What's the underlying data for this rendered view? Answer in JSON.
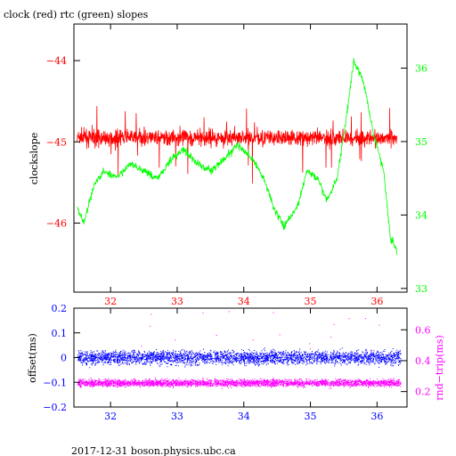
{
  "title": "clock (red) rtc (green) slopes",
  "footer": "2017-12-31  boson.physics.ubc.ca",
  "chart_data": [
    {
      "type": "line",
      "xlim": [
        31.45,
        36.45
      ],
      "x_ticks": [
        32,
        33,
        34,
        35,
        36
      ],
      "x_tick_color": "#ff0000",
      "y_left": {
        "label": "clockslope",
        "lim": [
          -46.85,
          -43.55
        ],
        "ticks": [
          -44,
          -45,
          -46
        ],
        "color": "#ff0000"
      },
      "y_right": {
        "label": "",
        "lim": [
          32.95,
          36.6
        ],
        "ticks": [
          33,
          34,
          35,
          36
        ],
        "color": "#00ff00"
      },
      "series": [
        {
          "color": "#ff0000",
          "axis": "left",
          "band_center": -44.95,
          "band_halfwidth": 0.12,
          "points": [
            [
              31.5,
              -44.9
            ],
            [
              32.5,
              -44.95
            ],
            [
              33.5,
              -44.95
            ],
            [
              34.5,
              -44.95
            ],
            [
              35.5,
              -44.95
            ],
            [
              36.3,
              -44.95
            ]
          ]
        },
        {
          "color": "#00ff00",
          "axis": "right",
          "points": [
            [
              31.5,
              34.1
            ],
            [
              31.6,
              33.9
            ],
            [
              31.75,
              34.4
            ],
            [
              31.9,
              34.6
            ],
            [
              32.1,
              34.5
            ],
            [
              32.3,
              34.7
            ],
            [
              32.5,
              34.6
            ],
            [
              32.7,
              34.5
            ],
            [
              32.9,
              34.75
            ],
            [
              33.1,
              34.9
            ],
            [
              33.3,
              34.7
            ],
            [
              33.5,
              34.6
            ],
            [
              33.7,
              34.75
            ],
            [
              33.9,
              34.95
            ],
            [
              34.1,
              34.8
            ],
            [
              34.3,
              34.5
            ],
            [
              34.45,
              34.1
            ],
            [
              34.6,
              33.85
            ],
            [
              34.8,
              34.1
            ],
            [
              34.95,
              34.6
            ],
            [
              35.1,
              34.5
            ],
            [
              35.25,
              34.2
            ],
            [
              35.4,
              34.5
            ],
            [
              35.55,
              35.4
            ],
            [
              35.65,
              36.1
            ],
            [
              35.8,
              35.8
            ],
            [
              35.95,
              35.1
            ],
            [
              36.1,
              34.6
            ],
            [
              36.2,
              33.7
            ],
            [
              36.3,
              33.5
            ]
          ]
        }
      ]
    },
    {
      "type": "scatter",
      "xlim": [
        31.45,
        36.45
      ],
      "x_ticks": [
        32,
        33,
        34,
        35,
        36
      ],
      "x_tick_color": "#0000ff",
      "y_left": {
        "label": "offset(ms)",
        "lim": [
          -0.2,
          0.2
        ],
        "ticks": [
          0.2,
          0.1,
          0,
          -0.1,
          -0.2
        ],
        "tick_labels": [
          "0.2",
          "0.1",
          "0",
          "−0.1",
          "−0.2"
        ],
        "color": "#0000ff"
      },
      "y_right": {
        "label": "rnd−trip(ms)",
        "lim": [
          0.1,
          0.74
        ],
        "ticks": [
          0.2,
          0.4,
          0.6
        ],
        "color": "#ff00ff"
      },
      "series": [
        {
          "color": "#0000ff",
          "axis": "left",
          "band_center": 0.0,
          "band_halfwidth": 0.035
        },
        {
          "color": "#ff00ff",
          "axis": "right",
          "band_center": 0.255,
          "band_halfwidth": 0.03
        }
      ]
    }
  ]
}
